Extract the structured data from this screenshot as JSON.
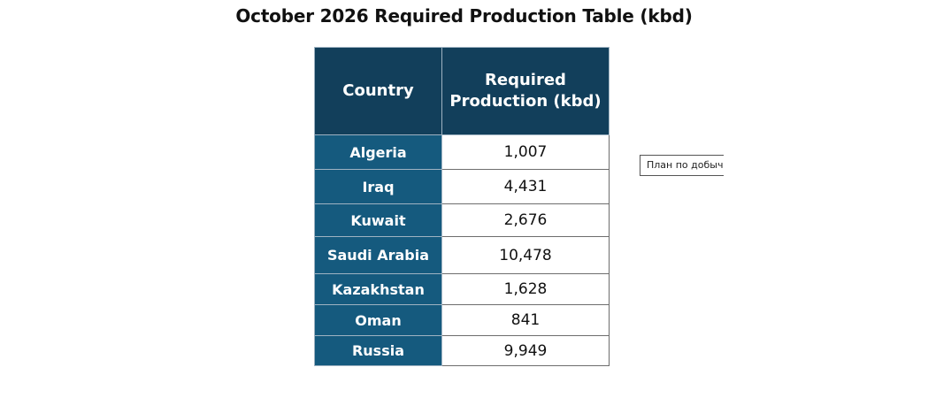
{
  "title": "October 2026 Required Production Table (kbd)",
  "table": {
    "headers": {
      "country": "Country",
      "production_line1": "Required",
      "production_line2": "Production (kbd)"
    },
    "rows": [
      {
        "country": "Algeria",
        "value": "1,007"
      },
      {
        "country": "Iraq",
        "value": "4,431"
      },
      {
        "country": "Kuwait",
        "value": "2,676"
      },
      {
        "country": "Saudi Arabia",
        "value": "10,478"
      },
      {
        "country": "Kazakhstan",
        "value": "1,628"
      },
      {
        "country": "Oman",
        "value": "841"
      },
      {
        "country": "Russia",
        "value": "9,949"
      }
    ]
  },
  "tooltip": {
    "text": "План по добыче"
  },
  "colors": {
    "header_bg": "#123f5b",
    "country_bg": "#155a7e",
    "value_bg": "#ffffff"
  }
}
